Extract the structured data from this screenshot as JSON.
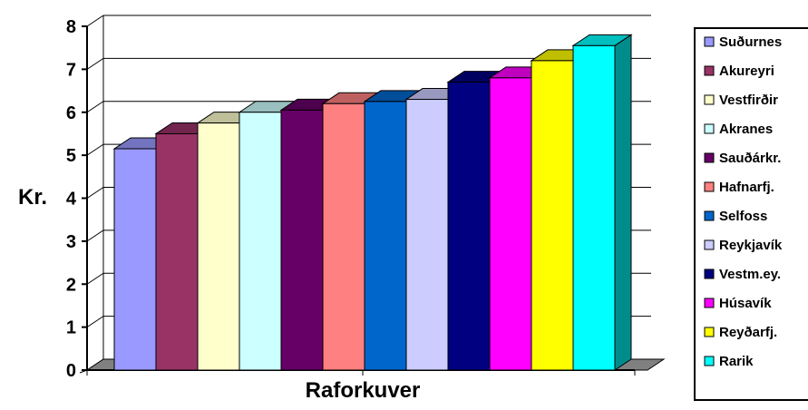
{
  "chart_data": {
    "type": "bar",
    "title": "",
    "xlabel": "Raforkuver",
    "ylabel": "Kr.",
    "ylim": [
      0,
      8
    ],
    "yticks": [
      "0",
      "1",
      "2",
      "3",
      "4",
      "5",
      "6",
      "7",
      "8"
    ],
    "grid": true,
    "legend_position": "right",
    "categories": [
      "Suðurnes",
      "Akureyri",
      "Vestfirðir",
      "Akranes",
      "Sauðárkr.",
      "Hafnarfj.",
      "Selfoss",
      "Reykjavík",
      "Vestm.ey.",
      "Húsavík",
      "Reyðarfj.",
      "Rarik"
    ],
    "values": [
      5.15,
      5.5,
      5.75,
      6.0,
      6.05,
      6.2,
      6.25,
      6.3,
      6.7,
      6.8,
      7.2,
      7.55
    ],
    "colors": [
      "#9999FF",
      "#993366",
      "#FFFFCC",
      "#CCFFFF",
      "#660066",
      "#FF8080",
      "#0066CC",
      "#CCCCFF",
      "#000080",
      "#FF00FF",
      "#FFFF00",
      "#00FFFF"
    ]
  }
}
